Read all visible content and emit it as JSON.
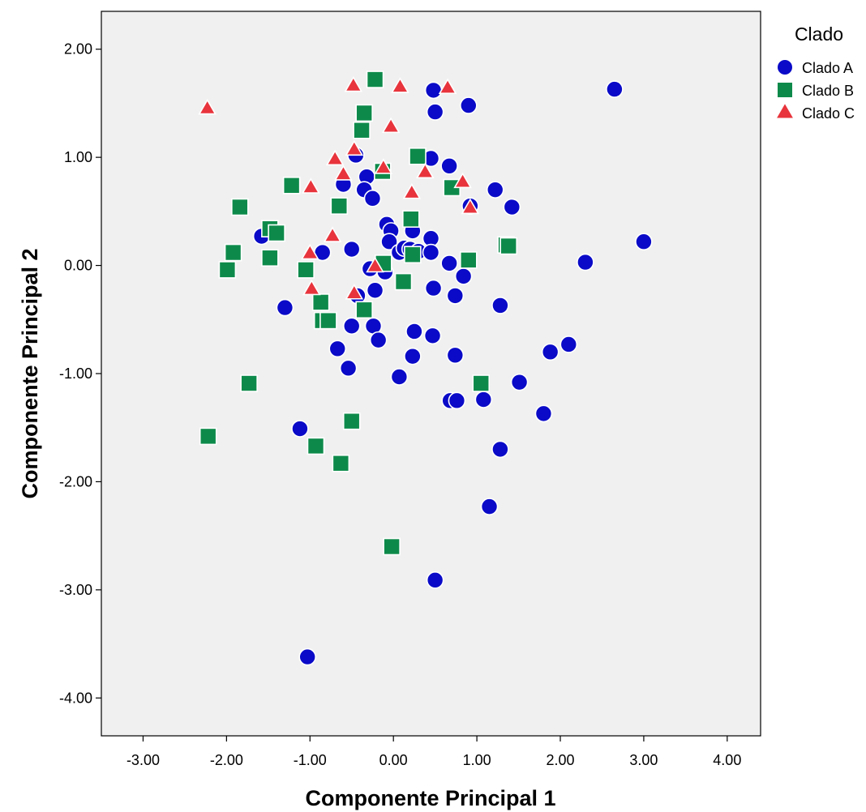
{
  "chart_data": {
    "type": "scatter",
    "title": "",
    "xlabel": "Componente Principal 1",
    "ylabel": "Componente Principal 2",
    "xlim": [
      -3.5,
      4.4
    ],
    "ylim": [
      -4.35,
      2.35
    ],
    "x_ticks": [
      -3,
      -2,
      -1,
      0,
      1,
      2,
      3,
      4
    ],
    "y_ticks": [
      2,
      1,
      0,
      -1,
      -2,
      -3,
      -4
    ],
    "x_tick_labels": [
      "-3.00",
      "-2.00",
      "-1.00",
      "0.00",
      "1.00",
      "2.00",
      "3.00",
      "4.00"
    ],
    "y_tick_labels": [
      "2.00",
      "1.00",
      "0.00",
      "-1.00",
      "-2.00",
      "-3.00",
      "-4.00"
    ],
    "grid": false,
    "legend_title": "Clado",
    "legend_position": "right",
    "series": [
      {
        "name": "Clado A",
        "marker": "circle",
        "color": "#0a0ac8",
        "points": [
          [
            -0.45,
            1.02
          ],
          [
            -0.6,
            0.75
          ],
          [
            -0.32,
            0.82
          ],
          [
            -0.35,
            0.7
          ],
          [
            -0.25,
            0.62
          ],
          [
            0.48,
            1.62
          ],
          [
            0.5,
            1.42
          ],
          [
            0.9,
            1.48
          ],
          [
            2.65,
            1.63
          ],
          [
            0.45,
            0.99
          ],
          [
            0.67,
            0.92
          ],
          [
            0.92,
            0.55
          ],
          [
            1.22,
            0.7
          ],
          [
            1.42,
            0.54
          ],
          [
            3.0,
            0.22
          ],
          [
            -1.58,
            0.27
          ],
          [
            -0.85,
            0.12
          ],
          [
            -0.5,
            0.15
          ],
          [
            -0.08,
            0.38
          ],
          [
            -0.03,
            0.32
          ],
          [
            -0.05,
            0.22
          ],
          [
            0.07,
            0.12
          ],
          [
            0.13,
            0.16
          ],
          [
            0.2,
            0.15
          ],
          [
            0.23,
            0.32
          ],
          [
            0.3,
            0.13
          ],
          [
            0.45,
            0.25
          ],
          [
            0.45,
            0.12
          ],
          [
            0.67,
            0.02
          ],
          [
            0.84,
            -0.1
          ],
          [
            2.3,
            0.03
          ],
          [
            -0.28,
            -0.03
          ],
          [
            -0.1,
            -0.06
          ],
          [
            -0.43,
            -0.28
          ],
          [
            -0.22,
            -0.23
          ],
          [
            0.48,
            -0.21
          ],
          [
            0.74,
            -0.28
          ],
          [
            1.28,
            -0.37
          ],
          [
            -1.3,
            -0.39
          ],
          [
            -0.5,
            -0.56
          ],
          [
            -0.24,
            -0.56
          ],
          [
            -0.18,
            -0.69
          ],
          [
            0.25,
            -0.61
          ],
          [
            0.47,
            -0.65
          ],
          [
            -0.67,
            -0.77
          ],
          [
            -0.54,
            -0.95
          ],
          [
            0.23,
            -0.84
          ],
          [
            0.74,
            -0.83
          ],
          [
            1.88,
            -0.8
          ],
          [
            2.1,
            -0.73
          ],
          [
            0.07,
            -1.03
          ],
          [
            0.68,
            -1.25
          ],
          [
            0.76,
            -1.25
          ],
          [
            1.08,
            -1.24
          ],
          [
            1.51,
            -1.08
          ],
          [
            1.8,
            -1.37
          ],
          [
            -1.12,
            -1.51
          ],
          [
            1.28,
            -1.7
          ],
          [
            1.15,
            -2.23
          ],
          [
            0.5,
            -2.91
          ],
          [
            -1.03,
            -3.62
          ]
        ]
      },
      {
        "name": "Clado B",
        "marker": "square",
        "color": "#0d8a4a",
        "points": [
          [
            -0.22,
            1.72
          ],
          [
            -0.35,
            1.41
          ],
          [
            -0.38,
            1.25
          ],
          [
            -0.13,
            0.87
          ],
          [
            0.29,
            1.01
          ],
          [
            -1.22,
            0.74
          ],
          [
            -0.65,
            0.55
          ],
          [
            0.7,
            0.72
          ],
          [
            -1.84,
            0.54
          ],
          [
            0.21,
            0.43
          ],
          [
            -1.48,
            0.34
          ],
          [
            -1.4,
            0.3
          ],
          [
            -1.92,
            0.12
          ],
          [
            -1.48,
            0.07
          ],
          [
            0.23,
            0.1
          ],
          [
            1.35,
            0.19
          ],
          [
            1.38,
            0.18
          ],
          [
            0.9,
            0.05
          ],
          [
            -1.99,
            -0.04
          ],
          [
            -1.05,
            -0.04
          ],
          [
            -0.12,
            0.02
          ],
          [
            0.12,
            -0.15
          ],
          [
            -0.87,
            -0.34
          ],
          [
            -0.35,
            -0.41
          ],
          [
            -0.85,
            -0.51
          ],
          [
            -0.78,
            -0.51
          ],
          [
            1.05,
            -1.09
          ],
          [
            -1.73,
            -1.09
          ],
          [
            -0.5,
            -1.44
          ],
          [
            -2.22,
            -1.58
          ],
          [
            -0.93,
            -1.67
          ],
          [
            -0.63,
            -1.83
          ],
          [
            -0.02,
            -2.6
          ]
        ]
      },
      {
        "name": "Clado C",
        "marker": "triangle",
        "color": "#e8343c",
        "points": [
          [
            -2.23,
            1.45
          ],
          [
            -0.48,
            1.66
          ],
          [
            0.08,
            1.65
          ],
          [
            0.65,
            1.64
          ],
          [
            -0.03,
            1.28
          ],
          [
            -0.47,
            1.07
          ],
          [
            -0.7,
            0.98
          ],
          [
            -0.12,
            0.9
          ],
          [
            -0.6,
            0.84
          ],
          [
            0.38,
            0.86
          ],
          [
            0.83,
            0.77
          ],
          [
            -0.99,
            0.72
          ],
          [
            0.22,
            0.67
          ],
          [
            0.92,
            0.53
          ],
          [
            -0.73,
            0.27
          ],
          [
            -1.0,
            0.11
          ],
          [
            -0.22,
            -0.01
          ],
          [
            -0.98,
            -0.22
          ],
          [
            -0.47,
            -0.26
          ]
        ]
      }
    ]
  }
}
